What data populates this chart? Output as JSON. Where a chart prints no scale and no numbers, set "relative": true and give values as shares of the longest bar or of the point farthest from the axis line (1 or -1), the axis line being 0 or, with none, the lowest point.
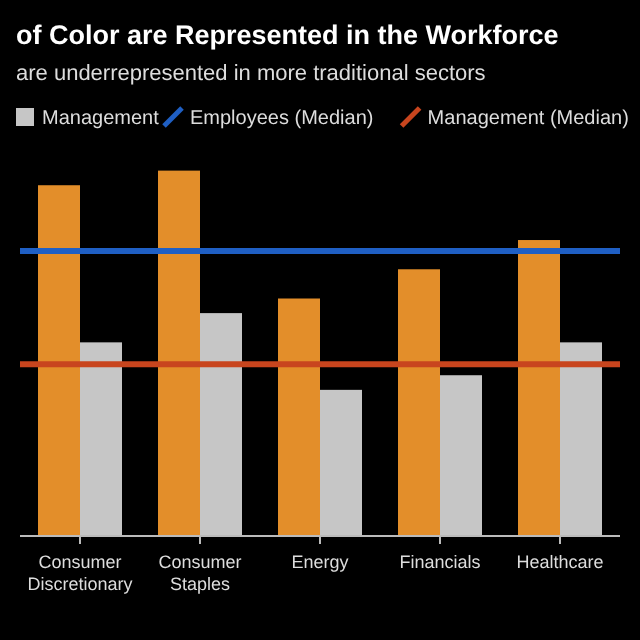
{
  "chart_data": {
    "type": "bar",
    "title": "of Color are Represented in the Workforce",
    "subtitle": "are underrepresented in more traditional sectors",
    "categories": [
      "Consumer Discretionary",
      "Consumer Staples",
      "Energy",
      "Financials",
      "Healthcare"
    ],
    "series": [
      {
        "color": "#e38e2a",
        "values": [
          0.96,
          1,
          0.65,
          0.73,
          0.81
        ]
      },
      {
        "name": "Management",
        "color": "#c6c6c6",
        "values": [
          0.53,
          0.61,
          0.4,
          0.44,
          0.53
        ]
      }
    ],
    "relative": true,
    "ref_lines": [
      {
        "axis": "y",
        "value": 0.78,
        "label": "Employees (Median)",
        "color": "#1f5fc4"
      },
      {
        "axis": "y",
        "value": 0.47,
        "label": "Management (Median)",
        "color": "#c8451e"
      }
    ],
    "legend": "top"
  }
}
